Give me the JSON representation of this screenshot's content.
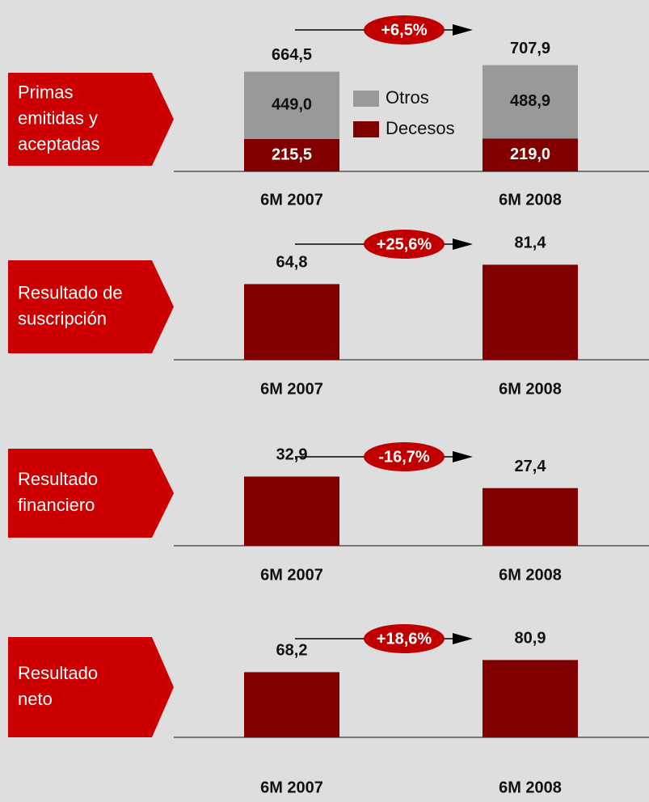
{
  "chart_data": [
    {
      "type": "stacked_bar",
      "label": [
        "Primas",
        "emitidas y",
        "aceptadas"
      ],
      "categories": [
        "6M 2007",
        "6M 2008"
      ],
      "series": [
        {
          "name": "Decesos",
          "color": "#800000",
          "values": [
            215.5,
            219.0
          ],
          "value_labels": [
            "215,5",
            "219,0"
          ]
        },
        {
          "name": "Otros",
          "color": "#999999",
          "values": [
            449.0,
            488.9
          ],
          "value_labels": [
            "449,0",
            "488,9"
          ]
        }
      ],
      "totals": [
        664.5,
        707.9
      ],
      "total_labels": [
        "664,5",
        "707,9"
      ],
      "change": "+6,5%",
      "ylim": [
        0,
        700
      ]
    },
    {
      "type": "bar",
      "label": [
        "Resultado de",
        "suscripción"
      ],
      "categories": [
        "6M 2007",
        "6M 2008"
      ],
      "color": "#800000",
      "values": [
        64.8,
        81.4
      ],
      "value_labels": [
        "64,8",
        "81,4"
      ],
      "change": "+25,6%",
      "ylim": [
        0,
        90
      ]
    },
    {
      "type": "bar",
      "label": [
        "Resultado",
        "financiero"
      ],
      "categories": [
        "6M 2007",
        "6M 2008"
      ],
      "color": "#800000",
      "values": [
        32.9,
        27.4
      ],
      "value_labels": [
        "32,9",
        "27,4"
      ],
      "change": "-16,7%",
      "ylim": [
        0,
        50
      ]
    },
    {
      "type": "bar",
      "label": [
        "Resultado",
        "neto"
      ],
      "categories": [
        "6M 2007",
        "6M 2008"
      ],
      "color": "#800000",
      "values": [
        68.2,
        80.9
      ],
      "value_labels": [
        "68,2",
        "80,9"
      ],
      "change": "+18,6%",
      "ylim": [
        0,
        110
      ]
    }
  ]
}
